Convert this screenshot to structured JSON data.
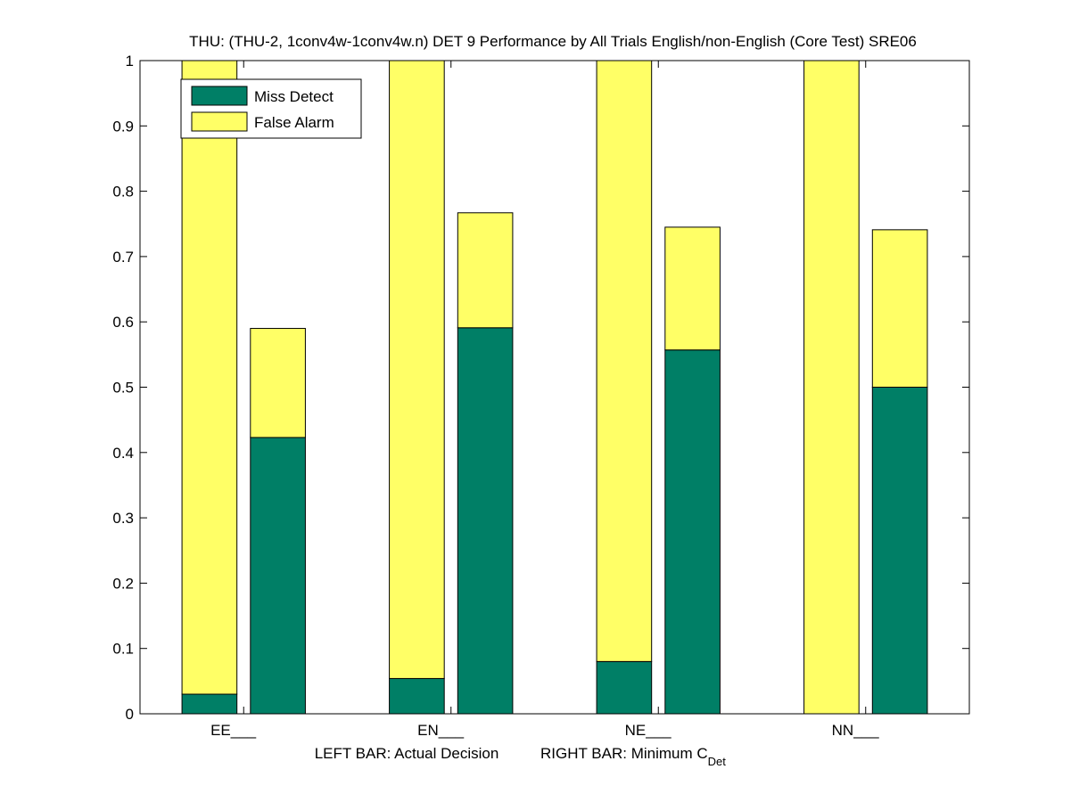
{
  "chart_data": {
    "type": "bar",
    "stacked": true,
    "title": "THU: (THU-2, 1conv4w-1conv4w.n) DET 9 Performance by All Trials English/non-English (Core Test) SRE06",
    "xlabel_left": "LEFT BAR: Actual Decision",
    "xlabel_right": "RIGHT BAR: Minimum C",
    "xlabel_right_subscript": "Det",
    "categories": [
      "EE___",
      "EN___",
      "NE___",
      "NN___"
    ],
    "bars_per_category": [
      "Actual Decision",
      "Minimum C_Det"
    ],
    "ylim": [
      0,
      1
    ],
    "yticks": [
      0,
      0.1,
      0.2,
      0.3,
      0.4,
      0.5,
      0.6,
      0.7,
      0.8,
      0.9,
      1
    ],
    "ytick_labels": [
      "0",
      "0.1",
      "0.2",
      "0.3",
      "0.4",
      "0.5",
      "0.6",
      "0.7",
      "0.8",
      "0.9",
      "1"
    ],
    "grid": false,
    "legend_position": "top-left",
    "series": [
      {
        "name": "Miss Detect",
        "color": "#007f66",
        "actual": [
          0.03,
          0.054,
          0.08,
          0.0
        ],
        "minimum": [
          0.423,
          0.591,
          0.557,
          0.5
        ]
      },
      {
        "name": "False Alarm",
        "color": "#ffff66",
        "actual": [
          0.97,
          0.946,
          0.92,
          1.0
        ],
        "minimum": [
          0.167,
          0.176,
          0.188,
          0.241
        ]
      }
    ]
  }
}
